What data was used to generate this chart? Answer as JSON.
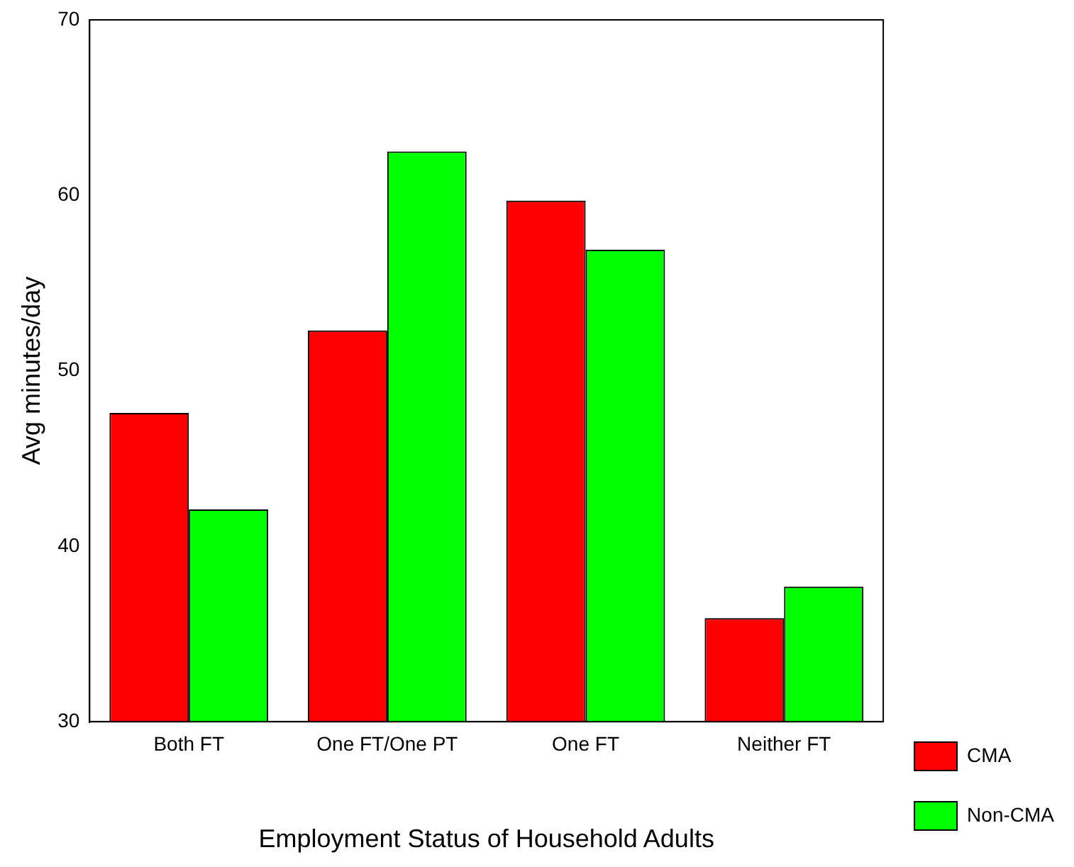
{
  "chart_data": {
    "type": "bar",
    "xlabel": "Employment Status of Household Adults",
    "ylabel": "Avg minutes/day",
    "categories": [
      "Both FT",
      "One FT/One PT",
      "One FT",
      "Neither FT"
    ],
    "series": [
      {
        "name": "CMA",
        "color": "#ff0000",
        "values": [
          47.6,
          52.3,
          59.7,
          35.9
        ]
      },
      {
        "name": "Non-CMA",
        "color": "#00ff00",
        "values": [
          42.1,
          62.5,
          56.9,
          37.7
        ]
      }
    ],
    "ylim": [
      30,
      70
    ],
    "yticks": [
      30,
      40,
      50,
      60,
      70
    ],
    "grid": false,
    "legend": "right"
  }
}
